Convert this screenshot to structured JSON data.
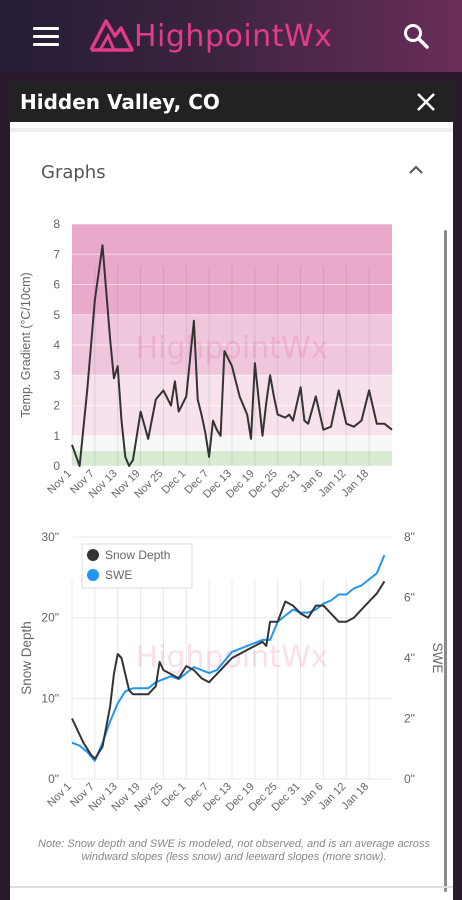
{
  "app": {
    "name": "HighpointWx"
  },
  "icons": {
    "menu": "hamburger-menu-icon",
    "search": "search-icon",
    "close": "close-icon",
    "collapse": "chevron-up-icon"
  },
  "colors": {
    "brand": "#e23b8a",
    "snow_depth": "#333333",
    "swe": "#2196f3"
  },
  "panel": {
    "title": "Hidden Valley, CO"
  },
  "section": {
    "title": "Graphs"
  },
  "note": "Note: Snow depth and SWE is modeled, not observed, and is an average across windward slopes (less snow) and leeward slopes (more snow).",
  "watermark": "HighpointWx",
  "chart_data": [
    {
      "type": "line",
      "ylabel": "Temp. Gradient (°C/10cm)",
      "ylim": [
        0,
        8
      ],
      "yticks": [
        "0",
        "1",
        "2",
        "3",
        "4",
        "5",
        "6",
        "7",
        "8"
      ],
      "x_ticks": [
        "Nov 1",
        "Nov 7",
        "Nov 13",
        "Nov 19",
        "Nov 25",
        "Dec 1",
        "Dec 7",
        "Dec 13",
        "Dec 19",
        "Dec 25",
        "Dec 31",
        "Jan 6",
        "Jan 12",
        "Jan 18"
      ],
      "bands": [
        {
          "from": 0,
          "to": 0.5,
          "color": "#d8ead2"
        },
        {
          "from": 0.5,
          "to": 1,
          "color": "#f7f7f7"
        },
        {
          "from": 1,
          "to": 3,
          "color": "#f7e1ec"
        },
        {
          "from": 3,
          "to": 5,
          "color": "#f0c6dc"
        },
        {
          "from": 5,
          "to": 8,
          "color": "#e9a9cb"
        }
      ],
      "series": [
        {
          "day": [
            0,
            2,
            4,
            6,
            8,
            10,
            11,
            12,
            13,
            14,
            15,
            16,
            18,
            20,
            22,
            24,
            26,
            27,
            28,
            30,
            32,
            33,
            34,
            35,
            36,
            37,
            38,
            39,
            40,
            42,
            44,
            46,
            47,
            48,
            50,
            51,
            52,
            53,
            54,
            56,
            57,
            58,
            60,
            61,
            62,
            64,
            66,
            68,
            70,
            72,
            74,
            76,
            78,
            80,
            82,
            84
          ],
          "values": [
            0.7,
            0,
            2.5,
            5.5,
            7.3,
            4.2,
            2.9,
            3.3,
            1.5,
            0.3,
            0,
            0.2,
            1.8,
            0.9,
            2.2,
            2.5,
            2.0,
            2.8,
            1.8,
            2.3,
            4.8,
            2.2,
            1.7,
            1.1,
            0.3,
            1.5,
            1.2,
            1.0,
            3.8,
            3.3,
            2.3,
            1.7,
            0.9,
            3.4,
            1.0,
            2.1,
            3.0,
            2.3,
            1.7,
            1.6,
            1.7,
            1.5,
            2.6,
            1.5,
            1.4,
            2.3,
            1.2,
            1.3,
            2.5,
            1.4,
            1.3,
            1.5,
            2.5,
            1.4,
            1.4,
            1.2
          ]
        }
      ]
    },
    {
      "type": "line",
      "ylabel": "Snow Depth",
      "y2label": "SWE",
      "ylim": [
        0,
        30
      ],
      "y2lim": [
        0,
        8
      ],
      "yticks": [
        "0\"",
        "10\"",
        "20\"",
        "30\""
      ],
      "y2ticks": [
        "0\"",
        "2\"",
        "4\"",
        "6\"",
        "8\""
      ],
      "x_ticks": [
        "Nov 1",
        "Nov 7",
        "Nov 13",
        "Nov 19",
        "Nov 25",
        "Dec 1",
        "Dec 7",
        "Dec 13",
        "Dec 19",
        "Dec 25",
        "Dec 31",
        "Jan 6",
        "Jan 12",
        "Jan 18"
      ],
      "legend": "top-left",
      "series": [
        {
          "name": "Snow Depth",
          "axis": "left",
          "day": [
            0,
            1,
            3,
            5,
            6,
            8,
            10,
            11,
            12,
            13,
            14,
            15,
            16,
            18,
            20,
            22,
            23,
            24,
            26,
            28,
            30,
            32,
            34,
            36,
            38,
            40,
            42,
            44,
            46,
            48,
            50,
            51,
            52,
            54,
            56,
            58,
            60,
            62,
            64,
            66,
            68,
            70,
            72,
            74,
            76,
            78,
            80,
            82
          ],
          "values": [
            7.5,
            6.5,
            4.5,
            3,
            2.5,
            4,
            9,
            13,
            15.5,
            15,
            13,
            11,
            10.5,
            10.5,
            10.5,
            11.5,
            14.5,
            13.5,
            13,
            12.5,
            14,
            13.5,
            12.5,
            12,
            13,
            14,
            15,
            15.5,
            16,
            16.5,
            17,
            16.5,
            19.5,
            19.5,
            22,
            21.5,
            20.5,
            20,
            21.5,
            21.5,
            20.5,
            19.5,
            19.5,
            20,
            21,
            22,
            23,
            24.5
          ]
        },
        {
          "name": "SWE",
          "axis": "right",
          "day": [
            0,
            2,
            4,
            6,
            8,
            10,
            12,
            14,
            16,
            18,
            20,
            22,
            24,
            26,
            28,
            30,
            32,
            34,
            36,
            38,
            40,
            42,
            44,
            46,
            48,
            50,
            52,
            54,
            56,
            58,
            60,
            62,
            64,
            66,
            68,
            70,
            72,
            74,
            76,
            78,
            80,
            82
          ],
          "values": [
            1.2,
            1.1,
            0.9,
            0.6,
            1.2,
            1.9,
            2.5,
            2.9,
            3.0,
            3.0,
            3.0,
            3.2,
            3.3,
            3.4,
            3.3,
            3.5,
            3.7,
            3.6,
            3.5,
            3.6,
            3.9,
            4.2,
            4.3,
            4.4,
            4.5,
            4.6,
            4.6,
            5.2,
            5.4,
            5.6,
            5.5,
            5.5,
            5.6,
            5.8,
            5.9,
            6.1,
            6.1,
            6.3,
            6.4,
            6.6,
            6.8,
            7.4
          ]
        }
      ]
    }
  ]
}
